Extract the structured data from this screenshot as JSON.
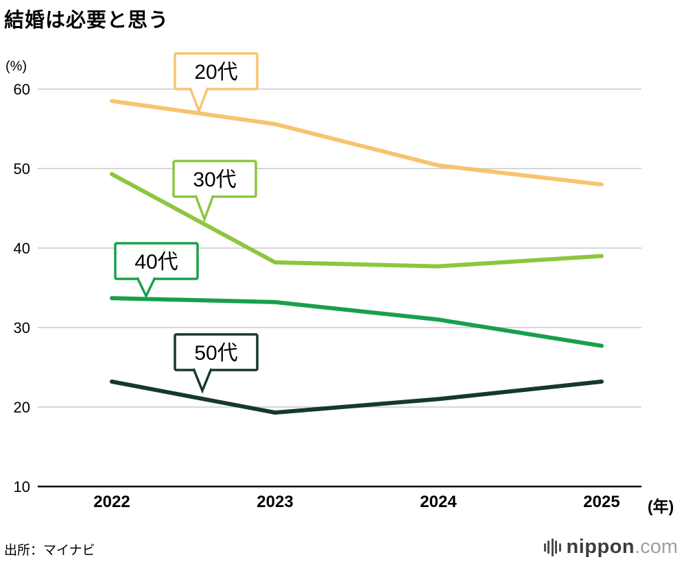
{
  "title": "結婚は必要と思う",
  "y_axis_unit": "(%)",
  "x_axis_unit": "(年)",
  "source": "出所：マイナビ",
  "logo": {
    "name": "nippon",
    "suffix": ".com"
  },
  "chart_data": {
    "type": "line",
    "title": "結婚は必要と思う",
    "x": [
      2022,
      2023,
      2024,
      2025
    ],
    "series": [
      {
        "name": "20代",
        "color": "#F6C46F",
        "values": [
          58.5,
          55.6,
          50.4,
          48.0
        ]
      },
      {
        "name": "30代",
        "color": "#8CC63E",
        "values": [
          49.3,
          38.2,
          37.7,
          39.0
        ]
      },
      {
        "name": "40代",
        "color": "#18A04B",
        "values": [
          33.7,
          33.2,
          31.0,
          27.7
        ]
      },
      {
        "name": "50代",
        "color": "#15392B",
        "values": [
          23.2,
          19.3,
          21.0,
          23.2
        ]
      }
    ],
    "ylim": [
      10,
      60
    ],
    "yticks": [
      10,
      20,
      30,
      40,
      50,
      60
    ],
    "grid": true,
    "legend_position": "callouts-on-lines",
    "grid_color": "#c9c9c9",
    "axis_color": "#000000"
  }
}
